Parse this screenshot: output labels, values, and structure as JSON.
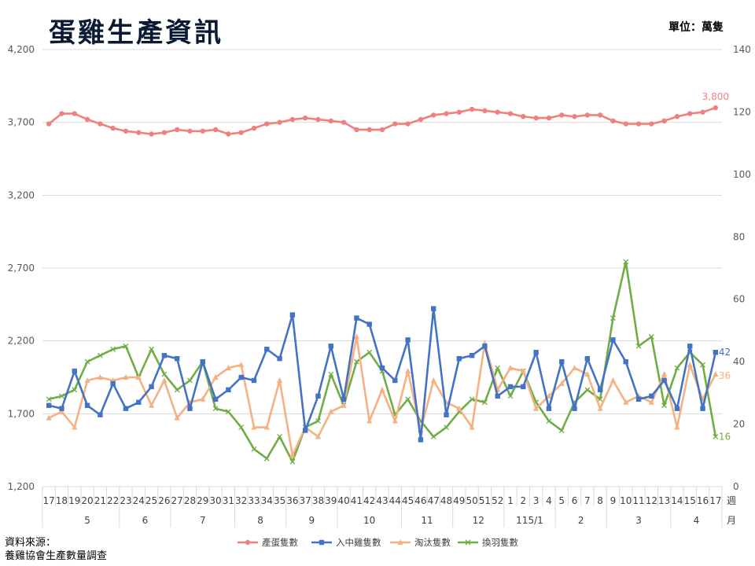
{
  "title": "蛋雞生產資訊",
  "unit_label": "單位：萬隻",
  "source_label": "資料來源：",
  "source_org": "養雞協會生產數量調查",
  "chart_data": {
    "type": "line",
    "title": "蛋雞生產資訊",
    "y_left": {
      "min": 1200,
      "max": 4200,
      "ticks": [
        "1,200",
        "1,700",
        "2,200",
        "2,700",
        "3,200",
        "3,700",
        "4,200"
      ]
    },
    "y_right": {
      "min": 0,
      "max": 140,
      "ticks": [
        "0",
        "20",
        "40",
        "60",
        "80",
        "100",
        "120",
        "140"
      ]
    },
    "x_end_label": [
      "週",
      "月"
    ],
    "x": [
      "17",
      "18",
      "19",
      "20",
      "21",
      "22",
      "23",
      "24",
      "25",
      "26",
      "27",
      "28",
      "29",
      "30",
      "31",
      "32",
      "33",
      "34",
      "35",
      "36",
      "37",
      "38",
      "39",
      "40",
      "41",
      "42",
      "43",
      "44",
      "45",
      "46",
      "47",
      "48",
      "49",
      "50",
      "51",
      "52",
      "1",
      "2",
      "3",
      "4",
      "5",
      "6",
      "7",
      "8",
      "9",
      "10",
      "11",
      "12",
      "13",
      "14",
      "15",
      "16",
      "17"
    ],
    "months": [
      {
        "label": "5",
        "from": 1,
        "to": 5
      },
      {
        "label": "6",
        "from": 6,
        "to": 9
      },
      {
        "label": "7",
        "from": 10,
        "to": 14
      },
      {
        "label": "8",
        "from": 15,
        "to": 18
      },
      {
        "label": "9",
        "from": 19,
        "to": 22
      },
      {
        "label": "10",
        "from": 23,
        "to": 27
      },
      {
        "label": "11",
        "from": 28,
        "to": 31
      },
      {
        "label": "12",
        "from": 32,
        "to": 35
      },
      {
        "label": "115/1",
        "from": 36,
        "to": 39
      },
      {
        "label": "2",
        "from": 40,
        "to": 43
      },
      {
        "label": "3",
        "from": 44,
        "to": 48
      },
      {
        "label": "4",
        "from": 49,
        "to": 52
      }
    ],
    "grid": true,
    "legend_position": "bottom",
    "series": [
      {
        "name": "產蛋隻數",
        "axis": "left",
        "color": "#f08080",
        "marker": "circle",
        "end_label": "3,800",
        "values": [
          3690,
          3760,
          3760,
          3720,
          3690,
          3660,
          3640,
          3630,
          3620,
          3630,
          3650,
          3640,
          3640,
          3650,
          3620,
          3630,
          3660,
          3690,
          3700,
          3720,
          3730,
          3720,
          3710,
          3700,
          3650,
          3650,
          3650,
          3690,
          3690,
          3720,
          3750,
          3760,
          3770,
          3790,
          3780,
          3770,
          3760,
          3740,
          3730,
          3730,
          3750,
          3740,
          3750,
          3750,
          3710,
          3690,
          3690,
          3690,
          3710,
          3740,
          3760,
          3770,
          3800
        ]
      },
      {
        "name": "入中雞隻數",
        "axis": "right",
        "color": "#4472c4",
        "marker": "square",
        "end_label": "42",
        "values": [
          26,
          25,
          37,
          26,
          23,
          33,
          25,
          27,
          32,
          42,
          41,
          25,
          40,
          28,
          31,
          35,
          34,
          44,
          41,
          55,
          18,
          29,
          45,
          28,
          54,
          52,
          38,
          34,
          47,
          15,
          57,
          23,
          41,
          42,
          45,
          29,
          32,
          32,
          43,
          25,
          40,
          25,
          41,
          31,
          47,
          40,
          28,
          29,
          34,
          25,
          45,
          25,
          43
        ]
      },
      {
        "name": "淘汰隻數",
        "axis": "right",
        "color": "#f4b183",
        "marker": "triangle",
        "end_label": "36",
        "values": [
          22,
          24,
          19,
          34,
          35,
          34,
          35,
          35,
          26,
          34,
          22,
          27,
          28,
          35,
          38,
          39,
          19,
          19,
          34,
          10,
          19,
          16,
          24,
          26,
          48,
          21,
          31,
          21,
          37,
          18,
          34,
          27,
          25,
          19,
          46,
          31,
          38,
          37,
          25,
          29,
          33,
          38,
          36,
          25,
          34,
          27,
          29,
          27,
          36,
          19,
          39,
          28,
          36
        ]
      },
      {
        "name": "換羽隻數",
        "axis": "right",
        "color": "#70ad47",
        "marker": "x",
        "end_label": "16",
        "values": [
          28,
          29,
          31,
          40,
          42,
          44,
          45,
          35,
          44,
          36,
          31,
          34,
          40,
          25,
          24,
          19,
          12,
          9,
          16,
          8,
          19,
          21,
          36,
          26,
          40,
          43,
          37,
          23,
          28,
          21,
          16,
          19,
          24,
          28,
          27,
          38,
          29,
          37,
          27,
          21,
          18,
          27,
          31,
          28,
          54,
          72,
          45,
          48,
          26,
          38,
          43,
          39,
          16
        ]
      }
    ]
  }
}
